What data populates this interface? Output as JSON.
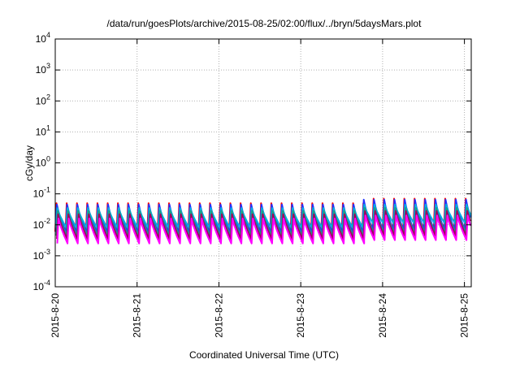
{
  "chart_data": {
    "type": "line",
    "title": "/data/run/goesPlots/archive/2015-08-25/02:00/flux/../bryn/5daysMars.plot",
    "xlabel": "Coordinated Universal Time (UTC)",
    "ylabel": "cGy/day",
    "y_scale": "log",
    "ylim": [
      0.0001,
      10000
    ],
    "y_ticks": [
      {
        "value": 0.0001,
        "base": "10",
        "exp": "-4"
      },
      {
        "value": 0.001,
        "base": "10",
        "exp": "-3"
      },
      {
        "value": 0.01,
        "base": "10",
        "exp": "-2"
      },
      {
        "value": 0.1,
        "base": "10",
        "exp": "-1"
      },
      {
        "value": 1,
        "base": "10",
        "exp": "0"
      },
      {
        "value": 10,
        "base": "10",
        "exp": "1"
      },
      {
        "value": 100,
        "base": "10",
        "exp": "2"
      },
      {
        "value": 1000,
        "base": "10",
        "exp": "3"
      },
      {
        "value": 10000,
        "base": "10",
        "exp": "4"
      }
    ],
    "xlim": [
      "2015-08-20T00:00",
      "2015-08-25T02:00"
    ],
    "x_ticks": [
      {
        "value": "2015-08-20T00:00",
        "label": "2015-8-20"
      },
      {
        "value": "2015-08-21T00:00",
        "label": "2015-8-21"
      },
      {
        "value": "2015-08-22T00:00",
        "label": "2015-8-22"
      },
      {
        "value": "2015-08-23T00:00",
        "label": "2015-8-23"
      },
      {
        "value": "2015-08-24T00:00",
        "label": "2015-8-24"
      },
      {
        "value": "2015-08-25T00:00",
        "label": "2015-8-25"
      }
    ],
    "grid": true,
    "legend": "none",
    "sawtooth_period_hours": 3,
    "series": [
      {
        "color": "#ff0000",
        "peak": 0.05,
        "trough": 0.006,
        "peak_late": 0.07,
        "trough_late": 0.007
      },
      {
        "color": "#2233ff",
        "peak": 0.045,
        "trough": 0.0058,
        "peak_late": 0.065,
        "trough_late": 0.0065
      },
      {
        "color": "#00b0e0",
        "peak": 0.035,
        "trough": 0.008,
        "peak_late": 0.045,
        "trough_late": 0.011
      },
      {
        "color": "#20a080",
        "peak": 0.028,
        "trough": 0.0045,
        "peak_late": 0.035,
        "trough_late": 0.0055
      },
      {
        "color": "#a00060",
        "peak": 0.022,
        "trough": 0.0035,
        "peak_late": 0.028,
        "trough_late": 0.0045
      },
      {
        "color": "#ff00ff",
        "peak": 0.016,
        "trough": 0.0025,
        "peak_late": 0.02,
        "trough_late": 0.0032
      }
    ]
  }
}
